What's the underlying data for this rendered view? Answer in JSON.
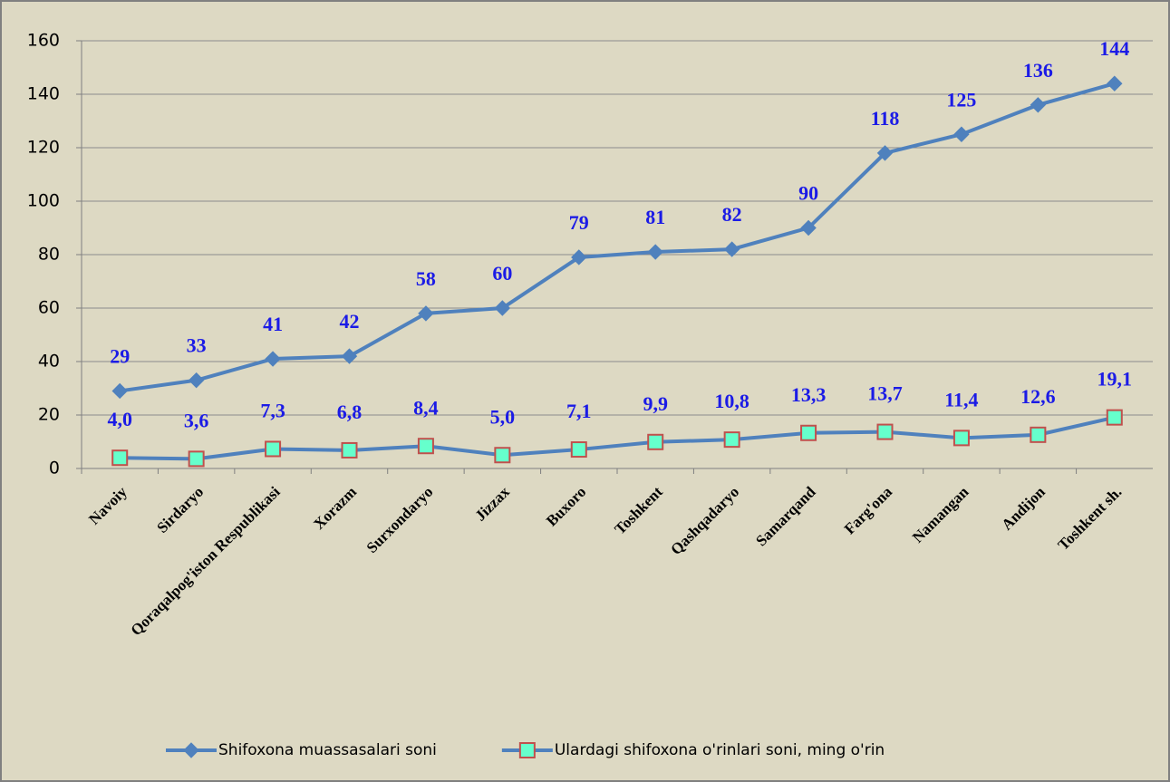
{
  "chart_data": {
    "type": "line",
    "categories": [
      "Navoiy",
      "Sirdaryo",
      "Qoraqalpog'iston Respublikasi",
      "Xorazm",
      "Surxondaryo",
      "Jizzax",
      "Buxoro",
      "Toshkent",
      "Qashqadaryo",
      "Samarqand",
      "Farg'ona",
      "Namangan",
      "Andijon",
      "Toshkent sh."
    ],
    "series": [
      {
        "name": "Shifoxona muassasalari soni",
        "color": "#4f81bd",
        "marker": "diamond",
        "values": [
          29,
          33,
          41,
          42,
          58,
          60,
          79,
          81,
          82,
          90,
          118,
          125,
          136,
          144
        ]
      },
      {
        "name": "Ulardagi shifoxona o'rinlari soni, ming o'rin",
        "color": "#4f81bd",
        "marker": "square",
        "marker_fill": "#66ffcc",
        "marker_edge": "#c0504d",
        "values": [
          4.0,
          3.6,
          7.3,
          6.8,
          8.4,
          5.0,
          7.1,
          9.9,
          10.8,
          13.3,
          13.7,
          11.4,
          12.6,
          19.1
        ],
        "value_labels": [
          "4,0",
          "3,6",
          "7,3",
          "6,8",
          "8,4",
          "5,0",
          "7,1",
          "9,9",
          "10,8",
          "13,3",
          "13,7",
          "11,4",
          "12,6",
          "19,1"
        ]
      }
    ],
    "ylim": [
      0,
      160
    ],
    "yticks": [
      0,
      20,
      40,
      60,
      80,
      100,
      120,
      140,
      160
    ],
    "grid": true,
    "legend": "bottom"
  }
}
